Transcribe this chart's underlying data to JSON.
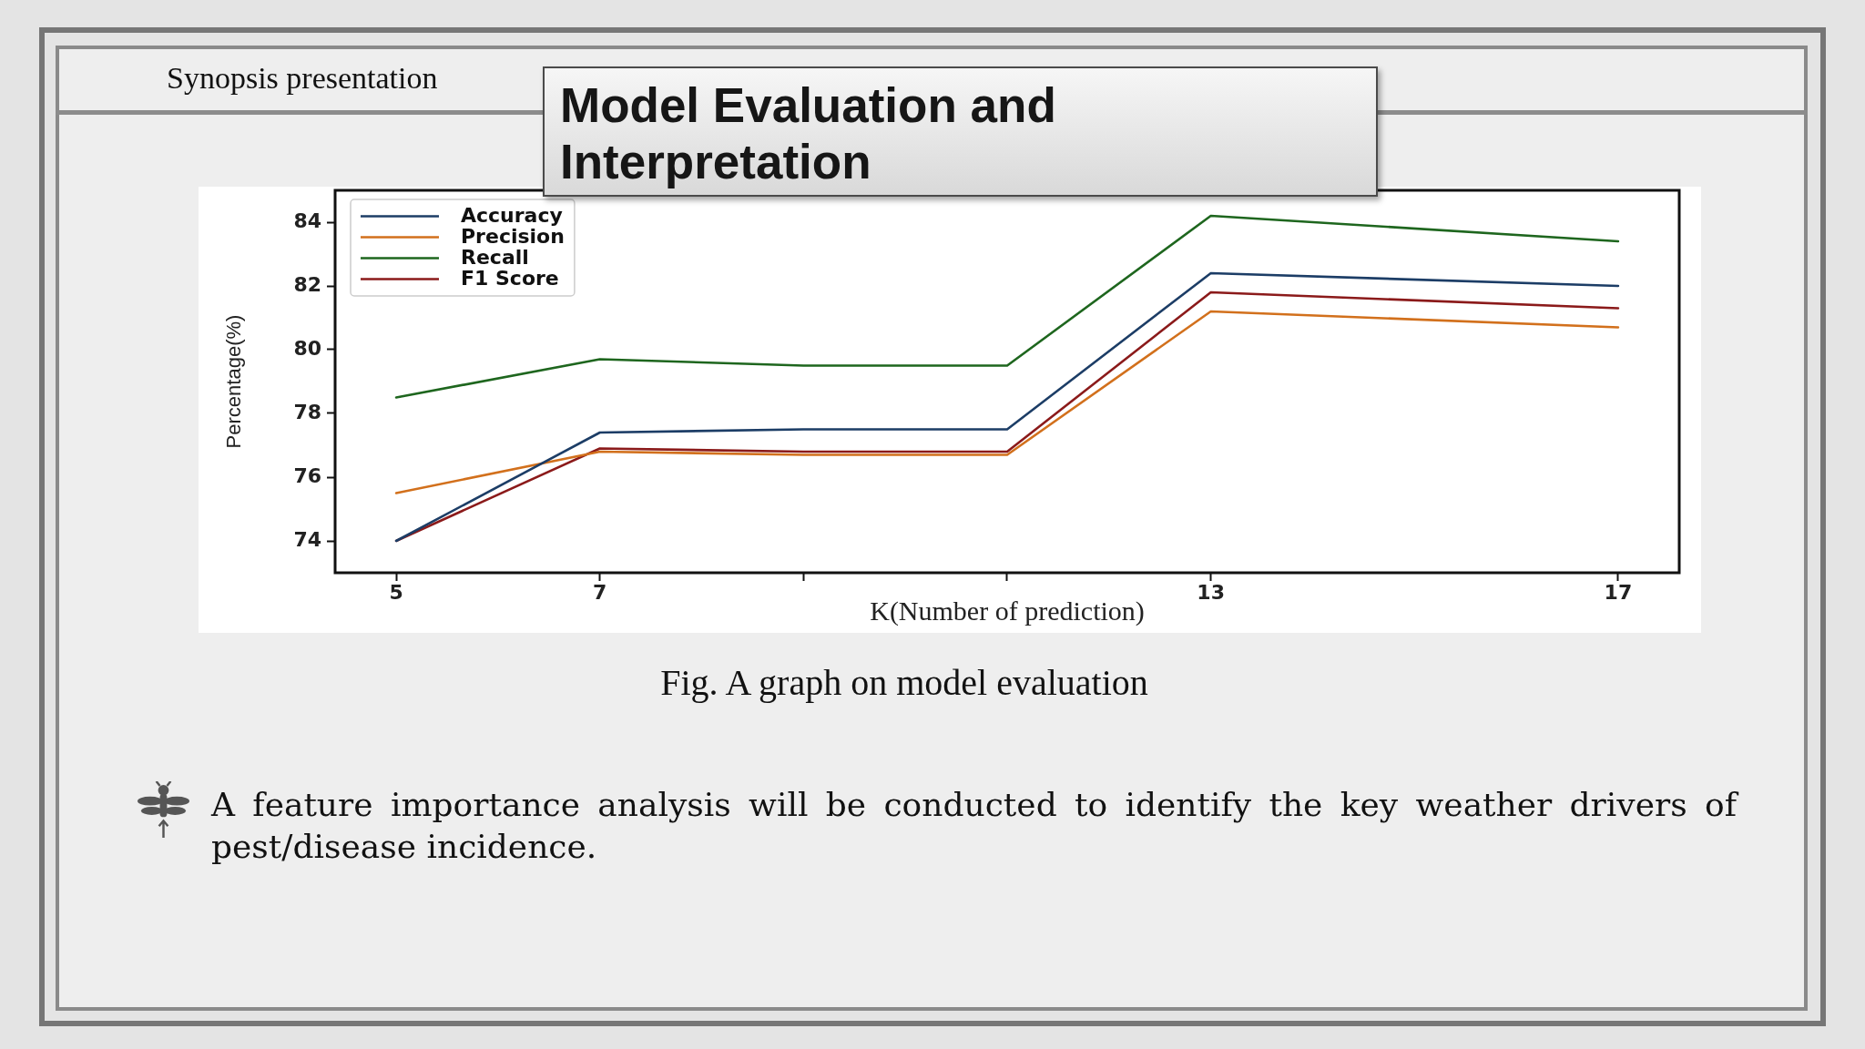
{
  "chart_data": {
    "type": "line",
    "title": "Model Evaluation and Interpretation",
    "xlabel": "K(Number of prediction)",
    "ylabel": "Percentage(%)",
    "x": [
      5,
      7,
      9,
      11,
      13,
      17
    ],
    "xlim": [
      4.4,
      17.6
    ],
    "xticks": [
      5,
      7,
      {
        "value": 9,
        "label": null
      },
      {
        "value": 11,
        "label": null
      },
      13,
      17
    ],
    "ylim": [
      73,
      85
    ],
    "yticks": [
      74,
      76,
      78,
      80,
      82,
      84
    ],
    "series": [
      {
        "name": "Accuracy",
        "color": "#1c3d66",
        "values": [
          74.0,
          77.4,
          77.5,
          77.5,
          82.4,
          82.0
        ]
      },
      {
        "name": "Precision",
        "color": "#d2701c",
        "values": [
          75.5,
          76.8,
          76.7,
          76.7,
          81.2,
          80.7
        ]
      },
      {
        "name": "Recall",
        "color": "#1e661e",
        "values": [
          78.5,
          79.7,
          79.5,
          79.5,
          84.2,
          83.4
        ]
      },
      {
        "name": "F1 Score",
        "color": "#8b1a1a",
        "values": [
          74.0,
          76.9,
          76.8,
          76.8,
          81.8,
          81.3
        ]
      }
    ],
    "legend": "top left",
    "line_style": "solid",
    "annotations": [
      "Synopsis presentation",
      "Fig. A graph on model evaluation",
      "A feature importance analysis will be conducted to identify the key weather drivers of pest/disease incidence."
    ]
  }
}
